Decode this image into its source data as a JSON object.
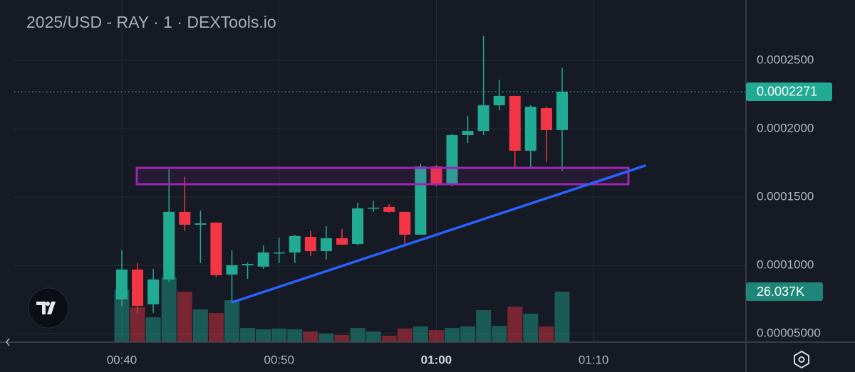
{
  "chart_data": {
    "type": "candlestick",
    "title": "2025/USD - RAY · 1 · DEXTools.io",
    "categories": [
      "00:40",
      null,
      null,
      null,
      null,
      null,
      null,
      null,
      null,
      null,
      "00:50",
      null,
      null,
      null,
      null,
      null,
      null,
      null,
      null,
      null,
      "01:00",
      null,
      null,
      null,
      null,
      null,
      null,
      null,
      null,
      null,
      "01:10"
    ],
    "open": [
      7.5e-05,
      9.69e-05,
      7.14e-05,
      8.96e-05,
      0.0001391,
      0.0001297,
      0.0001313,
      9.32e-05,
      0.0001,
      9.9e-05,
      0.0001089,
      0.0001094,
      0.0001208,
      0.0001104,
      0.0001198,
      0.0001156,
      0.0001417,
      0.0001427,
      0.0001391,
      0.0001224,
      0.0001724,
      0.0001589,
      0.0001953,
      0.0001984,
      0.0002172,
      0.000224,
      0.0001839,
      0.0002151,
      0.000199,
      null,
      null
    ],
    "high": [
      0.000111,
      0.0001016,
      9.74e-05,
      0.0001703,
      0.0001646,
      0.0001401,
      0.0001313,
      0.000111,
      0.0001021,
      0.0001146,
      0.0001203,
      0.0001224,
      0.000125,
      0.0001287,
      0.0001266,
      0.0001458,
      0.0001474,
      0.0001448,
      0.0001391,
      0.0001745,
      0.0001734,
      0.0001964,
      0.0002094,
      0.0002682,
      0.0002359,
      0.000224,
      0.0002172,
      0.0002161,
      0.0002448,
      null,
      null
    ],
    "low": [
      7.03e-05,
      6.51e-05,
      6.51e-05,
      8.75e-05,
      0.000125,
      0.0001016,
      9.12e-05,
      7.29e-05,
      9.01e-05,
      9.74e-05,
      0.0001016,
      0.0001016,
      0.0001068,
      0.0001042,
      0.0001146,
      0.0001146,
      0.0001391,
      0.0001385,
      0.0001136,
      0.0001224,
      0.0001578,
      0.0001578,
      0.0001896,
      0.0001953,
      0.0002135,
      0.0001719,
      0.0001719,
      0.000176,
      0.0001693,
      null,
      null
    ],
    "close": [
      9.69e-05,
      7.03e-05,
      8.96e-05,
      0.0001391,
      0.0001297,
      0.0001307,
      9.27e-05,
      0.0001,
      0.000101,
      0.0001094,
      0.0001094,
      0.0001214,
      0.0001104,
      0.0001198,
      0.0001151,
      0.0001417,
      0.0001422,
      0.0001391,
      0.0001224,
      0.0001724,
      0.0001589,
      0.0001953,
      0.0001984,
      0.0002172,
      0.000224,
      0.0001839,
      0.0002161,
      0.000199,
      0.0002271,
      null,
      null
    ],
    "volume": [
      27100,
      18000,
      12800,
      33400,
      26000,
      16900,
      15000,
      21600,
      7300,
      6600,
      7000,
      6600,
      5500,
      4400,
      3700,
      7300,
      5500,
      3300,
      7000,
      8100,
      6200,
      7300,
      8100,
      16500,
      8400,
      18300,
      14700,
      8100,
      26037,
      null,
      null
    ],
    "up_color": "#22ab94",
    "down_color": "#f23645",
    "ylim": [
      4.37e-05,
      0.0002943
    ],
    "yticks": [
      {
        "value": 5e-05,
        "label": "0.00005000"
      },
      {
        "value": 0.0001,
        "label": "0.0001000"
      },
      {
        "value": 0.00015,
        "label": "0.0001500"
      },
      {
        "value": 0.0002,
        "label": "0.0002000"
      },
      {
        "value": 0.00025,
        "label": "0.0002500"
      }
    ],
    "grid": true,
    "last_price": {
      "value": 0.0002271,
      "label": "0.0002271"
    },
    "last_volume": {
      "value": 26037,
      "label": "26.037K"
    }
  }
}
